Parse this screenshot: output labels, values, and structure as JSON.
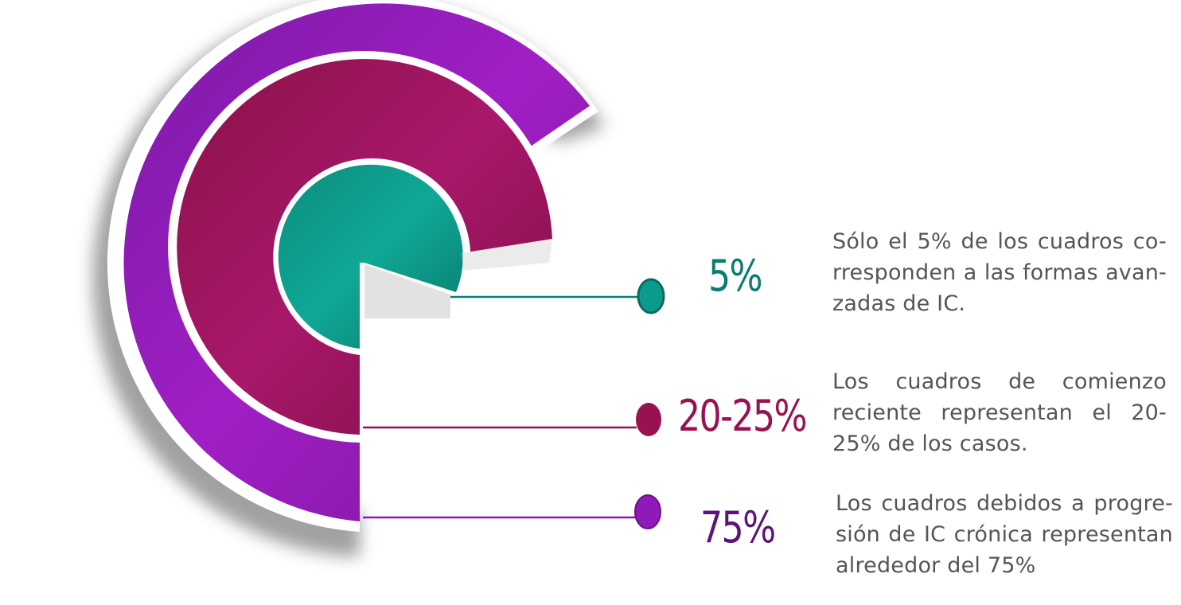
{
  "colors": {
    "teal": "#0a9b8c",
    "magenta": "#98124f",
    "purple": "#8f1ab8"
  },
  "segments": [
    {
      "id": "teal",
      "value_label": "5%",
      "value": 5,
      "description": "Sólo el 5% de los cuadros co-rresponden a las formas avan-zadas de IC."
    },
    {
      "id": "magenta",
      "value_label": "20-25%",
      "value_range": [
        20,
        25
      ],
      "description": "Los cuadros de comienzo reciente representan el 20-25% de los casos."
    },
    {
      "id": "purple",
      "value_label": "75%",
      "value": 75,
      "description": "Los cuadros debidos a progre-sión de IC crónica representan alrededor del 75%"
    }
  ]
}
